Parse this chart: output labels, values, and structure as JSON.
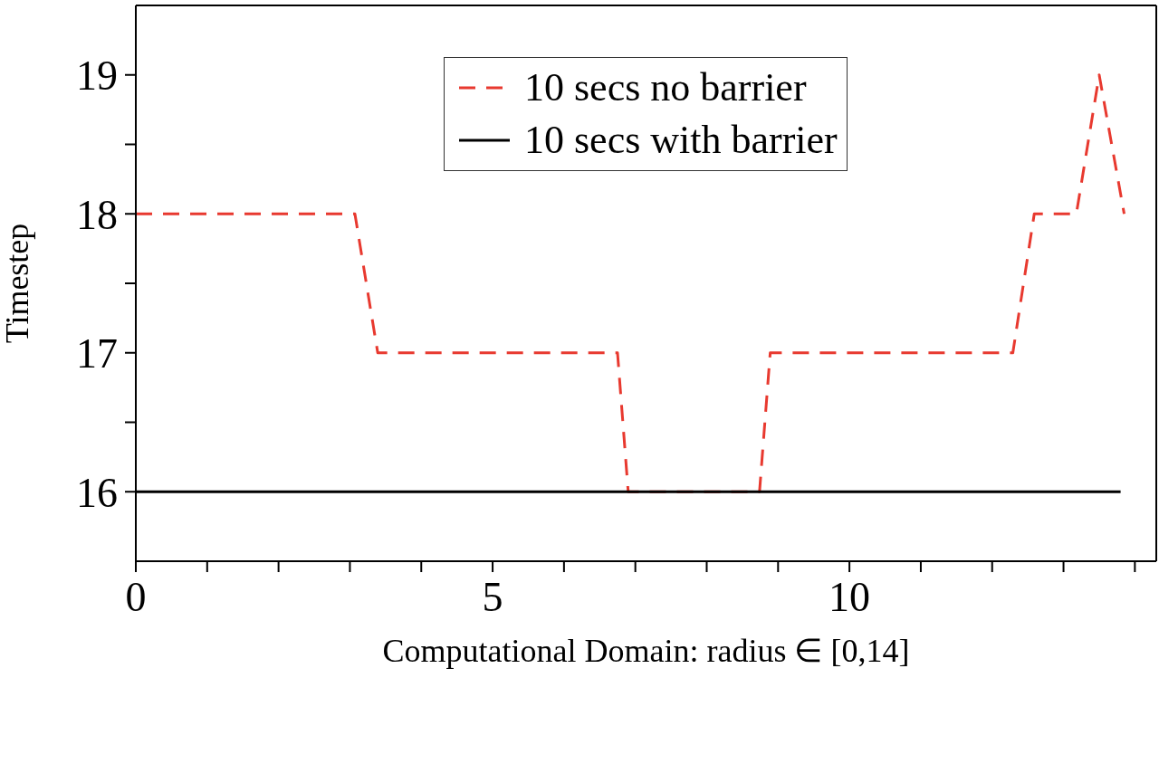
{
  "chart_data": {
    "type": "line",
    "xlabel": "Computational Domain: radius ∈ [0,14]",
    "ylabel": "Timestep",
    "xlim": [
      0,
      14.3
    ],
    "xticks": [
      0,
      {
        "value": 1,
        "label": null
      },
      {
        "value": 2,
        "label": null
      },
      {
        "value": 3,
        "label": null
      },
      {
        "value": 4,
        "label": null
      },
      5,
      {
        "value": 6,
        "label": null
      },
      {
        "value": 7,
        "label": null
      },
      {
        "value": 8,
        "label": null
      },
      {
        "value": 9,
        "label": null
      },
      10,
      {
        "value": 11,
        "label": null
      },
      {
        "value": 12,
        "label": null
      },
      {
        "value": 13,
        "label": null
      },
      {
        "value": 14,
        "label": null
      }
    ],
    "ylim": [
      15.5,
      19.5
    ],
    "yticks": [
      16,
      {
        "value": 16.5,
        "label": null
      },
      17,
      {
        "value": 17.5,
        "label": null
      },
      18,
      {
        "value": 18.5,
        "label": null
      },
      19
    ],
    "legend": "top right",
    "marker": "none",
    "series": [
      {
        "name": "10 secs no barrier",
        "color": "#e8392f",
        "line_style": "dashed",
        "x": [
          0,
          3.07,
          3.39,
          6.75,
          6.9,
          8.74,
          8.89,
          12.29,
          12.59,
          13.18,
          13.5,
          13.85
        ],
        "values": [
          18,
          18,
          17,
          17,
          16,
          16,
          17,
          17,
          18,
          18,
          19,
          18
        ]
      },
      {
        "name": "10 secs with barrier",
        "color": "#000000",
        "line_style": "solid",
        "x": [
          0,
          13.8
        ],
        "values": [
          16,
          16
        ]
      }
    ]
  }
}
